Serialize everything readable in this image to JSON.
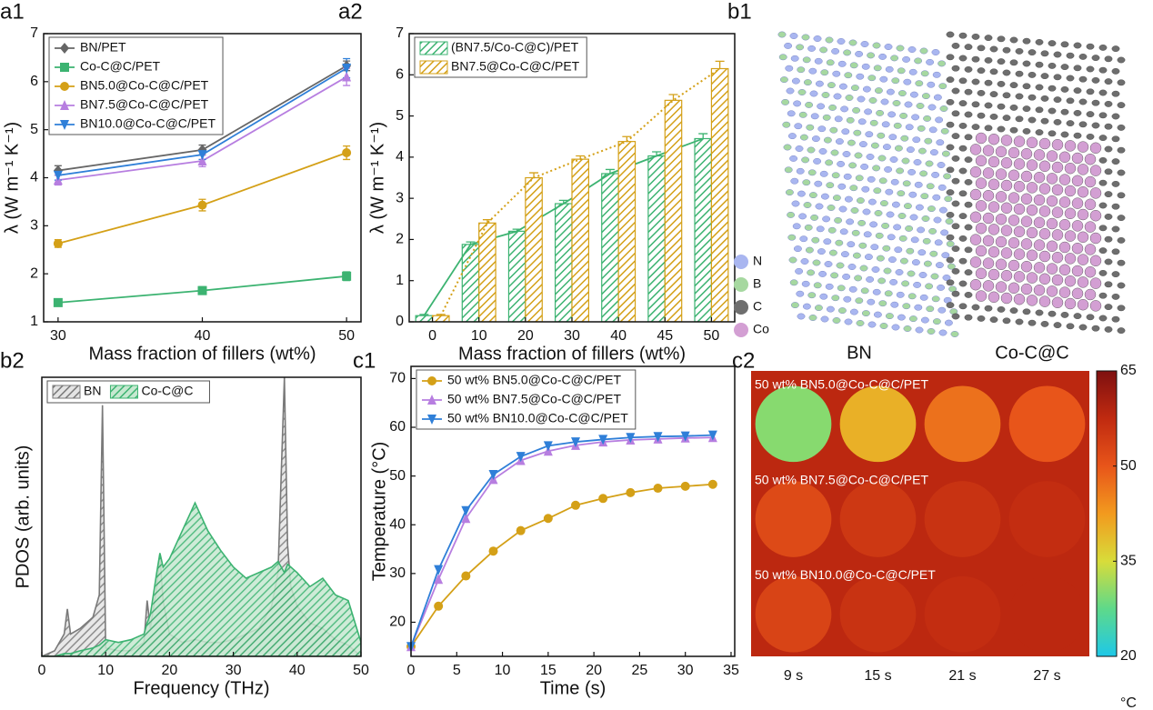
{
  "chart_data": [
    {
      "type": "line",
      "panel": "a1",
      "x_label": "Mass fraction of fillers (wt%)",
      "y_label": "λ (W m⁻¹ K⁻¹)",
      "x": [
        30,
        40,
        50
      ],
      "xlim": [
        29,
        51
      ],
      "xticks": [
        30,
        40,
        50
      ],
      "ylim": [
        1,
        7
      ],
      "yticks": [
        1,
        2,
        3,
        4,
        5,
        6,
        7
      ],
      "legend": "upper left",
      "series": [
        {
          "name": "BN/PET",
          "color": "#666666",
          "marker": "diamond",
          "values": [
            4.15,
            4.58,
            6.33
          ],
          "errors": [
            0.1,
            0.1,
            0.1
          ]
        },
        {
          "name": "Co-C@C/PET",
          "color": "#3cb371",
          "marker": "square",
          "values": [
            1.4,
            1.65,
            1.95
          ],
          "errors": [
            0.07,
            0.08,
            0.09
          ]
        },
        {
          "name": "BN5.0@Co-C@C/PET",
          "color": "#d4a017",
          "marker": "circle",
          "values": [
            2.63,
            3.43,
            4.52
          ],
          "errors": [
            0.08,
            0.12,
            0.14
          ]
        },
        {
          "name": "BN7.5@Co-C@C/PET",
          "color": "#b77ee0",
          "marker": "triangle-up",
          "values": [
            3.95,
            4.35,
            6.1
          ],
          "errors": [
            0.1,
            0.12,
            0.18
          ]
        },
        {
          "name": "BN10.0@Co-C@C/PET",
          "color": "#2f7fd8",
          "marker": "triangle-down",
          "values": [
            4.05,
            4.48,
            6.28
          ],
          "errors": [
            0.1,
            0.1,
            0.2
          ]
        }
      ]
    },
    {
      "type": "bar",
      "panel": "a2",
      "x_label": "Mass fraction of fillers (wt%)",
      "y_label": "λ (W m⁻¹ K⁻¹)",
      "categories": [
        "0",
        "10",
        "20",
        "30",
        "40",
        "45",
        "50"
      ],
      "ylim": [
        0,
        7
      ],
      "yticks": [
        0,
        1,
        2,
        3,
        4,
        5,
        6,
        7
      ],
      "legend": "upper left",
      "series": [
        {
          "name": "(BN7.5/Co-C@C)/PET",
          "color": "#3cb371",
          "trend": "solid",
          "values": [
            0.15,
            1.88,
            2.2,
            2.87,
            3.6,
            4.03,
            4.45
          ],
          "errors": [
            0.03,
            0.06,
            0.05,
            0.08,
            0.1,
            0.1,
            0.12
          ]
        },
        {
          "name": "BN7.5@Co-C@C/PET",
          "color": "#d4a017",
          "trend": "dotted",
          "values": [
            0.15,
            2.4,
            3.5,
            3.95,
            4.38,
            5.38,
            6.15
          ],
          "errors": [
            0.03,
            0.08,
            0.12,
            0.08,
            0.12,
            0.14,
            0.18
          ]
        }
      ]
    },
    {
      "type": "area",
      "panel": "b2",
      "x_label": "Frequency (THz)",
      "y_label": "PDOS (arb. units)",
      "x": [
        0,
        2,
        3.5,
        4,
        4.5,
        6,
        8,
        9,
        9.5,
        10,
        12,
        14,
        16,
        16.5,
        17,
        18,
        18.5,
        19,
        20,
        22,
        24,
        26,
        28,
        30,
        32,
        34,
        36,
        37,
        38,
        38.5,
        39,
        40,
        42,
        44,
        46,
        48,
        50
      ],
      "xlim": [
        0,
        50
      ],
      "xticks": [
        0,
        10,
        20,
        30,
        40,
        50
      ],
      "ylim": [
        0,
        100
      ],
      "legend": "upper left",
      "series": [
        {
          "name": "BN",
          "color": "#7a7a7a",
          "values": [
            0,
            2,
            8,
            17,
            8,
            10,
            14,
            22,
            90,
            3,
            2,
            2,
            5,
            20,
            10,
            25,
            36,
            20,
            8,
            5,
            6,
            5,
            5,
            6,
            8,
            10,
            18,
            30,
            100,
            40,
            25,
            18,
            12,
            10,
            6,
            4,
            0
          ]
        },
        {
          "name": "Co-C@C",
          "color": "#3cb371",
          "values": [
            0,
            0,
            1,
            1,
            1,
            2,
            3,
            4,
            5,
            6,
            5,
            6,
            8,
            12,
            15,
            30,
            37,
            32,
            35,
            45,
            55,
            45,
            38,
            32,
            28,
            30,
            32,
            34,
            30,
            33,
            32,
            30,
            25,
            28,
            22,
            20,
            5
          ]
        }
      ]
    },
    {
      "type": "line",
      "panel": "c1",
      "x_label": "Time (s)",
      "y_label": "Temperature (°C)",
      "x": [
        0,
        3,
        6,
        9,
        12,
        15,
        18,
        21,
        24,
        27,
        30,
        33
      ],
      "xlim": [
        0,
        35.4
      ],
      "xticks": [
        0,
        5,
        10,
        15,
        20,
        25,
        30,
        35
      ],
      "ylim": [
        13,
        72.5
      ],
      "yticks": [
        20,
        30,
        40,
        50,
        60,
        70
      ],
      "legend": "upper left",
      "series": [
        {
          "name": "50 wt% BN5.0@Co-C@C/PET",
          "color": "#d4a017",
          "marker": "circle",
          "values": [
            15,
            23.3,
            29.5,
            34.6,
            38.8,
            41.3,
            44,
            45.4,
            46.6,
            47.5,
            47.9,
            48.3
          ]
        },
        {
          "name": "50 wt% BN7.5@Co-C@C/PET",
          "color": "#b77ee0",
          "marker": "triangle-up",
          "values": [
            15,
            28.8,
            41.3,
            49.3,
            53.2,
            55.1,
            56.3,
            57,
            57.4,
            57.6,
            57.8,
            57.9
          ]
        },
        {
          "name": "50 wt% BN10.0@Co-C@C/PET",
          "color": "#2f7fd8",
          "marker": "triangle-down",
          "values": [
            15,
            30.8,
            42.9,
            50.3,
            54,
            56.2,
            57,
            57.5,
            57.9,
            58.1,
            58.2,
            58.4
          ]
        }
      ]
    },
    {
      "type": "heatmap",
      "panel": "c2",
      "columns": [
        "9 s",
        "15 s",
        "21 s",
        "27 s"
      ],
      "row_labels": [
        "50 wt% BN5.0@Co-C@C/PET",
        "50 wt% BN7.5@Co-C@C/PET",
        "50 wt% BN10.0@Co-C@C/PET"
      ],
      "values": [
        [
          30,
          40,
          47,
          50
        ],
        [
          52,
          55,
          56,
          57
        ],
        [
          53,
          56,
          57,
          58
        ]
      ],
      "zlim": [
        20,
        65
      ],
      "zticks": [
        20,
        35,
        50,
        65
      ],
      "unit": "°C",
      "background": 58,
      "colorscale": [
        "#1ec8e8",
        "#5ed98a",
        "#d8dc3a",
        "#f29a1e",
        "#e8551a",
        "#c02a10",
        "#7e1010"
      ]
    }
  ],
  "structure": {
    "panel": "b1",
    "labels": [
      "BN",
      "Co-C@C"
    ],
    "legend": [
      {
        "label": "N",
        "color": "#a9b6f0"
      },
      {
        "label": "B",
        "color": "#a6d8a0"
      },
      {
        "label": "C",
        "color": "#6e6e6e"
      },
      {
        "label": "Co",
        "color": "#d39fd3"
      }
    ]
  }
}
